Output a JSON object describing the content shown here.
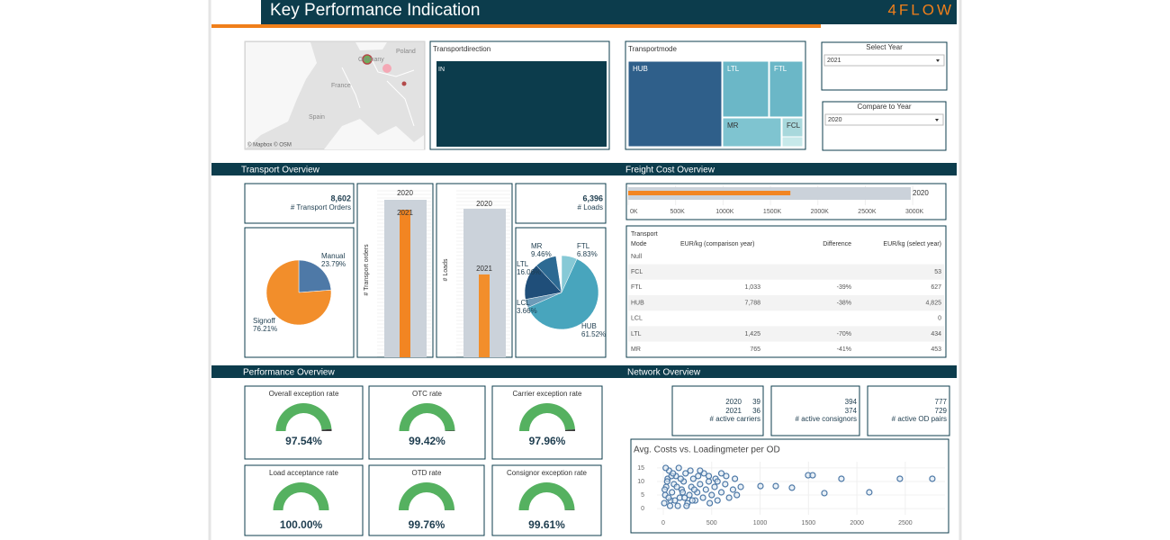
{
  "header": {
    "title": "Key Performance Indication",
    "logo": "4FLOW"
  },
  "map": {
    "labels": [
      "Poland",
      "Germany",
      "France",
      "Spain"
    ],
    "attribution": "© Mapbox © OSM"
  },
  "transport_direction": {
    "title": "Transportdirection",
    "label": "IN"
  },
  "transport_mode": {
    "title": "Transportmode",
    "labels": [
      "HUB",
      "LTL",
      "FTL",
      "MR",
      "FCL"
    ]
  },
  "filters": [
    {
      "label": "Select Year",
      "value": "2021"
    },
    {
      "label": "Compare to Year",
      "value": "2020"
    }
  ],
  "sections": [
    "Transport Overview",
    "Freight Cost Overview",
    "Performance Overview",
    "Network Overview"
  ],
  "transport_overview": {
    "orders_kpi": {
      "value": "8,602",
      "label": "# Transport Orders"
    },
    "loads_kpi": {
      "value": "6,396",
      "label": "# Loads"
    },
    "orders_chart": {
      "type": "bar",
      "y_label": "# Transport orders",
      "categories": [
        "2020",
        "2021"
      ],
      "values": [
        9180,
        8602
      ],
      "colors": [
        "#cbd2da",
        "#f28522"
      ],
      "ylim": [
        0,
        9600
      ]
    },
    "loads_chart": {
      "type": "bar",
      "y_label": "# Loads",
      "categories": [
        "2020",
        "2021"
      ],
      "values": [
        11470,
        6396
      ],
      "colors": [
        "#cbd2da",
        "#f28e2b"
      ],
      "ylim": [
        0,
        12720
      ]
    },
    "order_type_pie": {
      "type": "pie",
      "categories": [
        "Manual",
        "Signoff"
      ],
      "values": [
        23.79,
        76.21
      ],
      "value_labels": [
        "23.79%",
        "76.21%"
      ],
      "colors": [
        "#4e79a7",
        "#f28e2b"
      ]
    },
    "mode_pie": {
      "type": "pie",
      "categories": [
        "FTL",
        "HUB",
        "LCL",
        "LTL",
        "MR"
      ],
      "values": [
        6.83,
        61.52,
        3.66,
        16.06,
        9.46
      ],
      "value_labels": [
        "6.83%",
        "61.52%",
        "3.66%",
        "16.06%",
        "9.46%"
      ],
      "colors": [
        "#86c9d6",
        "#48a5bd",
        "#6d9bb8",
        "#1f4e79",
        "#2d6a93"
      ]
    }
  },
  "freight_cost": {
    "chart": {
      "type": "bar",
      "orientation": "horizontal",
      "categories": [
        "2020",
        null
      ],
      "values": [
        2980000,
        1710000
      ],
      "colors": [
        "#cbd2da",
        "#f28522"
      ],
      "xlim": [
        0,
        3350000
      ],
      "xticks": [
        {
          "value": 0,
          "label": "0K"
        },
        {
          "value": 500000,
          "label": "500K"
        },
        {
          "value": 1000000,
          "label": "1000K"
        },
        {
          "value": 1500000,
          "label": "1500K"
        },
        {
          "value": 2000000,
          "label": "2000K"
        },
        {
          "value": 2500000,
          "label": "2500K"
        },
        {
          "value": 3000000,
          "label": "3000K"
        }
      ]
    },
    "table": {
      "columns": [
        [
          "Transport",
          "Mode"
        ],
        "EUR/kg (comparison year)",
        "Difference",
        "EUR/kg (select year)"
      ],
      "rows": [
        [
          "Null",
          null,
          null,
          null
        ],
        [
          "FCL",
          null,
          null,
          "53"
        ],
        [
          "FTL",
          "1,033",
          "-39%",
          "627"
        ],
        [
          "HUB",
          "7,788",
          "-38%",
          "4,825"
        ],
        [
          "LCL",
          null,
          null,
          "0"
        ],
        [
          "LTL",
          "1,425",
          "-70%",
          "434"
        ],
        [
          "MR",
          "765",
          "-41%",
          "453"
        ]
      ]
    }
  },
  "performance": {
    "gauges": [
      {
        "title": "Overall exception rate",
        "value": 97.54,
        "value_label": "97.54%"
      },
      {
        "title": "OTC rate",
        "value": 99.42,
        "value_label": "99.42%"
      },
      {
        "title": "Carrier exception rate",
        "value": 97.96,
        "value_label": "97.96%"
      },
      {
        "title": "Load acceptance rate",
        "value": 100,
        "value_label": "100.00%"
      },
      {
        "title": "OTD rate",
        "value": 99.76,
        "value_label": "99.76%"
      },
      {
        "title": "Consignor exception rate",
        "value": 99.61,
        "value_label": "99.61%"
      }
    ],
    "color": "#55b160",
    "rest_color": "#3a3a3a"
  },
  "network": {
    "kpis": [
      {
        "years": [
          "2020",
          "2021"
        ],
        "values": [
          "39",
          "36"
        ],
        "label": "# active carriers"
      },
      {
        "values": [
          "394",
          "374"
        ],
        "label": "# active consignors"
      },
      {
        "values": [
          "777",
          "729"
        ],
        "label": "# active OD pairs"
      }
    ],
    "scatter": {
      "type": "scatter",
      "title": "Avg. Costs vs. Loadingmeter per OD",
      "color": "#4e79a7",
      "x": [
        10,
        20,
        30,
        45,
        60,
        75,
        90,
        110,
        130,
        150,
        170,
        190,
        210,
        230,
        250,
        270,
        290,
        310,
        330,
        350,
        380,
        410,
        440,
        470,
        500,
        530,
        560,
        600,
        640,
        680,
        720,
        760,
        800,
        25,
        55,
        85,
        120,
        160,
        200,
        240,
        280,
        320,
        360,
        420,
        480,
        540,
        600,
        15,
        40,
        70,
        100,
        140,
        180,
        220,
        300,
        380,
        470,
        560,
        650,
        740,
        1004,
        1162,
        1329,
        1496,
        1543,
        1664,
        1840,
        2128,
        2444,
        2779
      ],
      "y": [
        2,
        5,
        8,
        11,
        14,
        3,
        6,
        9,
        12,
        1,
        4,
        7,
        10,
        13,
        2,
        5,
        8,
        11,
        3,
        6,
        9,
        4,
        7,
        10,
        5,
        8,
        3,
        6,
        9,
        4,
        7,
        5,
        8,
        15,
        4,
        12,
        3,
        15,
        6,
        1,
        14,
        7,
        12,
        13,
        2,
        11,
        13,
        7,
        10,
        1,
        13,
        8,
        11,
        4,
        3,
        14,
        12,
        10,
        12,
        11,
        8.3,
        8.3,
        7.7,
        12.3,
        12.3,
        5.7,
        11,
        6,
        11,
        11
      ],
      "xlim": [
        -65,
        2910
      ],
      "ylim": [
        -2.3,
        17.3
      ],
      "xticks": [
        0,
        500,
        1000,
        1500,
        2000,
        2500
      ],
      "yticks": [
        0,
        5,
        10,
        15
      ]
    }
  }
}
